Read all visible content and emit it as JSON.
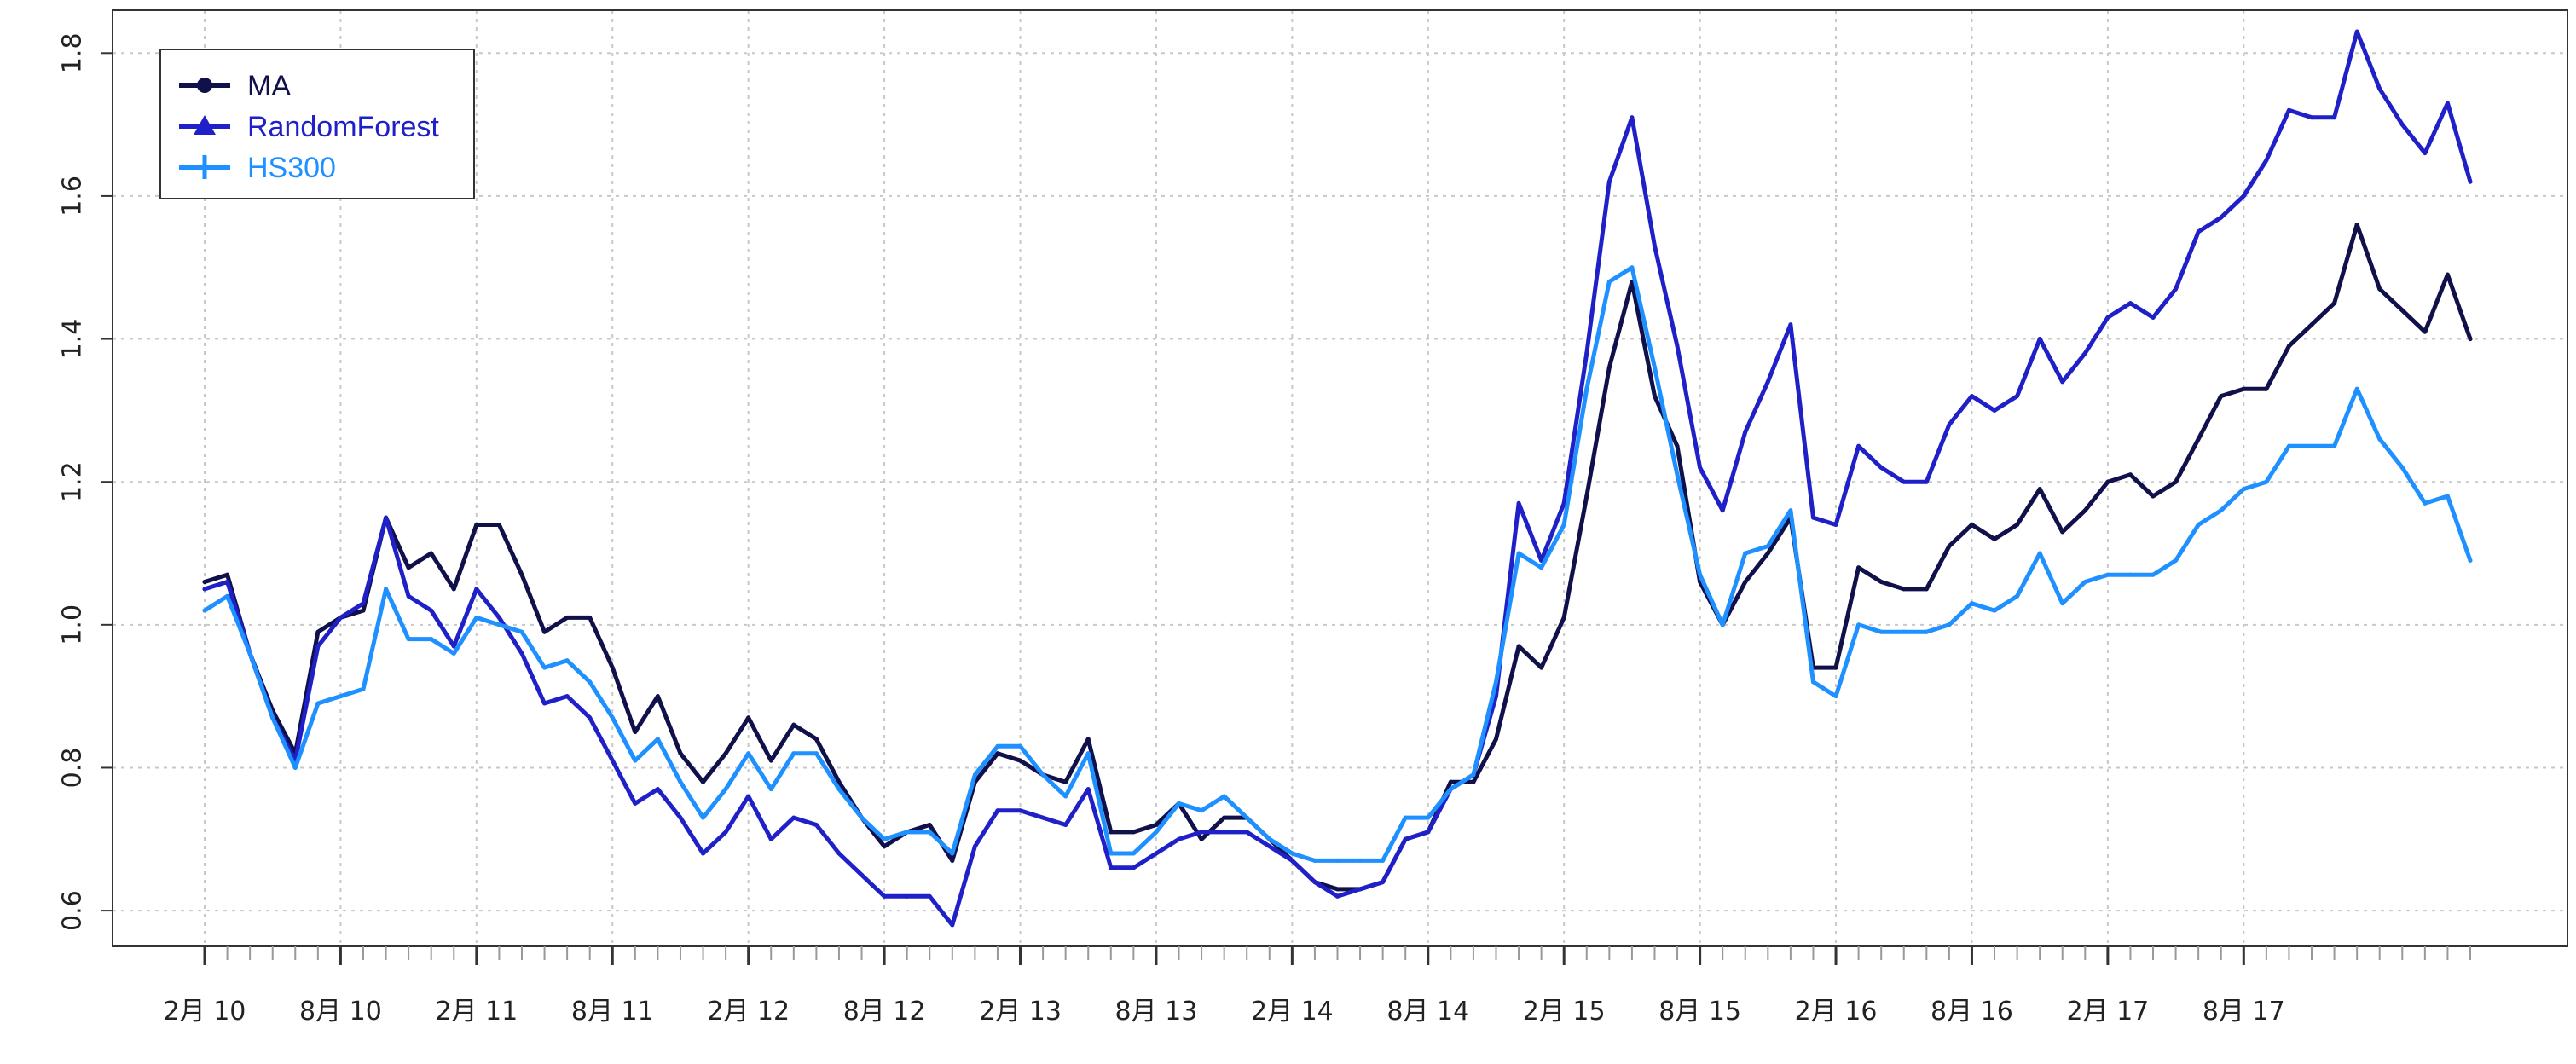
{
  "chart_data": {
    "type": "line",
    "title": "",
    "xlabel": "",
    "ylabel": "",
    "ylim": [
      0.55,
      1.86
    ],
    "y_ticks": [
      "0.6",
      "0.8",
      "1.0",
      "1.2",
      "1.4",
      "1.6",
      "1.8"
    ],
    "x_tick_labels": [
      "2月 10",
      "8月 10",
      "2月 11",
      "8月 11",
      "2月 12",
      "8月 12",
      "2月 13",
      "8月 13",
      "2月 14",
      "8月 14",
      "2月 15",
      "8月 15",
      "2月 16",
      "8月 16",
      "2月 17",
      "8月 17"
    ],
    "grid": true,
    "legend_position": "top-left",
    "series": [
      {
        "name": "MA",
        "color": "#10104a",
        "marker": "circle",
        "values": [
          1.06,
          1.07,
          0.96,
          0.88,
          0.82,
          0.99,
          1.01,
          1.02,
          1.15,
          1.08,
          1.1,
          1.05,
          1.14,
          1.14,
          1.07,
          0.99,
          1.01,
          1.01,
          0.94,
          0.85,
          0.9,
          0.82,
          0.78,
          0.82,
          0.87,
          0.81,
          0.86,
          0.84,
          0.78,
          0.73,
          0.69,
          0.71,
          0.72,
          0.67,
          0.78,
          0.82,
          0.81,
          0.79,
          0.78,
          0.84,
          0.71,
          0.71,
          0.72,
          0.75,
          0.7,
          0.73,
          0.73,
          0.7,
          0.67,
          0.64,
          0.63,
          0.63,
          0.64,
          0.7,
          0.71,
          0.78,
          0.78,
          0.84,
          0.97,
          0.94,
          1.01,
          1.18,
          1.36,
          1.48,
          1.32,
          1.25,
          1.06,
          1.0,
          1.06,
          1.1,
          1.15,
          0.94,
          0.94,
          1.08,
          1.06,
          1.05,
          1.05,
          1.11,
          1.14,
          1.12,
          1.14,
          1.19,
          1.13,
          1.16,
          1.2,
          1.21,
          1.18,
          1.2,
          1.26,
          1.32,
          1.33,
          1.33,
          1.39,
          1.42,
          1.45,
          1.56,
          1.47,
          1.44,
          1.41,
          1.49,
          1.4
        ]
      },
      {
        "name": "RandomForest",
        "color": "#2020c8",
        "marker": "triangle",
        "values": [
          1.05,
          1.06,
          0.96,
          0.87,
          0.81,
          0.97,
          1.01,
          1.03,
          1.15,
          1.04,
          1.02,
          0.97,
          1.05,
          1.01,
          0.96,
          0.89,
          0.9,
          0.87,
          0.81,
          0.75,
          0.77,
          0.73,
          0.68,
          0.71,
          0.76,
          0.7,
          0.73,
          0.72,
          0.68,
          0.65,
          0.62,
          0.62,
          0.62,
          0.58,
          0.69,
          0.74,
          0.74,
          0.73,
          0.72,
          0.77,
          0.66,
          0.66,
          0.68,
          0.7,
          0.71,
          0.71,
          0.71,
          0.69,
          0.67,
          0.64,
          0.62,
          0.63,
          0.64,
          0.7,
          0.71,
          0.77,
          0.79,
          0.9,
          1.17,
          1.09,
          1.17,
          1.38,
          1.62,
          1.71,
          1.53,
          1.39,
          1.22,
          1.16,
          1.27,
          1.34,
          1.42,
          1.15,
          1.14,
          1.25,
          1.22,
          1.2,
          1.2,
          1.28,
          1.32,
          1.3,
          1.32,
          1.4,
          1.34,
          1.38,
          1.43,
          1.45,
          1.43,
          1.47,
          1.55,
          1.57,
          1.6,
          1.65,
          1.72,
          1.71,
          1.71,
          1.83,
          1.75,
          1.7,
          1.66,
          1.73,
          1.62
        ]
      },
      {
        "name": "HS300",
        "color": "#1e90ff",
        "marker": "plus",
        "values": [
          1.02,
          1.04,
          0.96,
          0.87,
          0.8,
          0.89,
          0.9,
          0.91,
          1.05,
          0.98,
          0.98,
          0.96,
          1.01,
          1.0,
          0.99,
          0.94,
          0.95,
          0.92,
          0.87,
          0.81,
          0.84,
          0.78,
          0.73,
          0.77,
          0.82,
          0.77,
          0.82,
          0.82,
          0.77,
          0.73,
          0.7,
          0.71,
          0.71,
          0.68,
          0.79,
          0.83,
          0.83,
          0.79,
          0.76,
          0.82,
          0.68,
          0.68,
          0.71,
          0.75,
          0.74,
          0.76,
          0.73,
          0.7,
          0.68,
          0.67,
          0.67,
          0.67,
          0.67,
          0.73,
          0.73,
          0.77,
          0.79,
          0.92,
          1.1,
          1.08,
          1.14,
          1.33,
          1.48,
          1.5,
          1.36,
          1.21,
          1.07,
          1.0,
          1.1,
          1.11,
          1.16,
          0.92,
          0.9,
          1.0,
          0.99,
          0.99,
          0.99,
          1.0,
          1.03,
          1.02,
          1.04,
          1.1,
          1.03,
          1.06,
          1.07,
          1.07,
          1.07,
          1.09,
          1.14,
          1.16,
          1.19,
          1.2,
          1.25,
          1.25,
          1.25,
          1.33,
          1.26,
          1.22,
          1.17,
          1.18,
          1.09
        ]
      }
    ]
  }
}
